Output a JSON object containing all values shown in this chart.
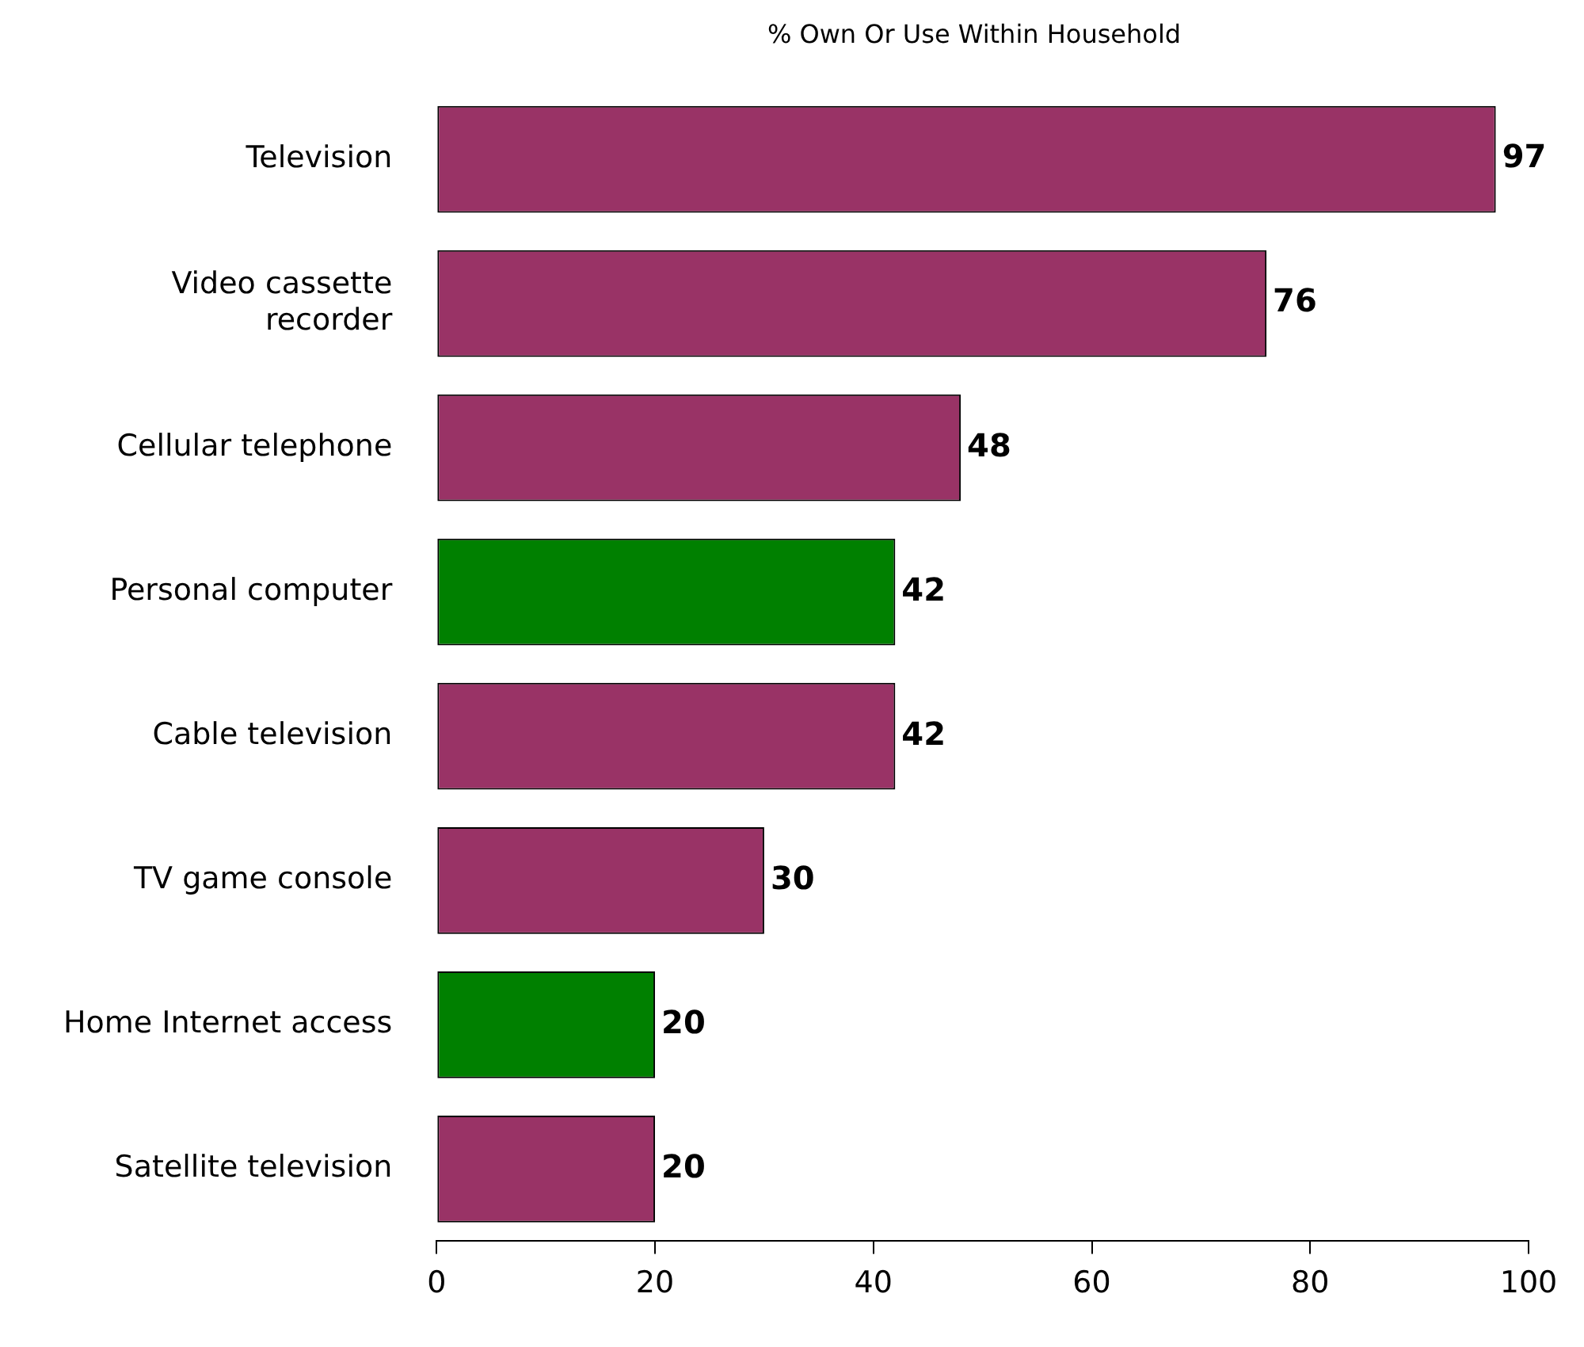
{
  "chart_data": {
    "type": "bar",
    "orientation": "horizontal",
    "title": "% Own Or Use Within Household",
    "categories": [
      "Television",
      "Video cassette recorder",
      "Cellular telephone",
      "Personal computer",
      "Cable television",
      "TV game console",
      "Home Internet access",
      "Satellite television"
    ],
    "values": [
      97,
      76,
      48,
      42,
      42,
      30,
      20,
      20
    ],
    "colors": [
      "#993366",
      "#993366",
      "#993366",
      "#008000",
      "#993366",
      "#993366",
      "#008000",
      "#993366"
    ],
    "xlim": [
      0,
      100
    ],
    "xticks": [
      0,
      20,
      40,
      60,
      80,
      100
    ],
    "data_labels": true,
    "grid": false,
    "legend": false
  }
}
